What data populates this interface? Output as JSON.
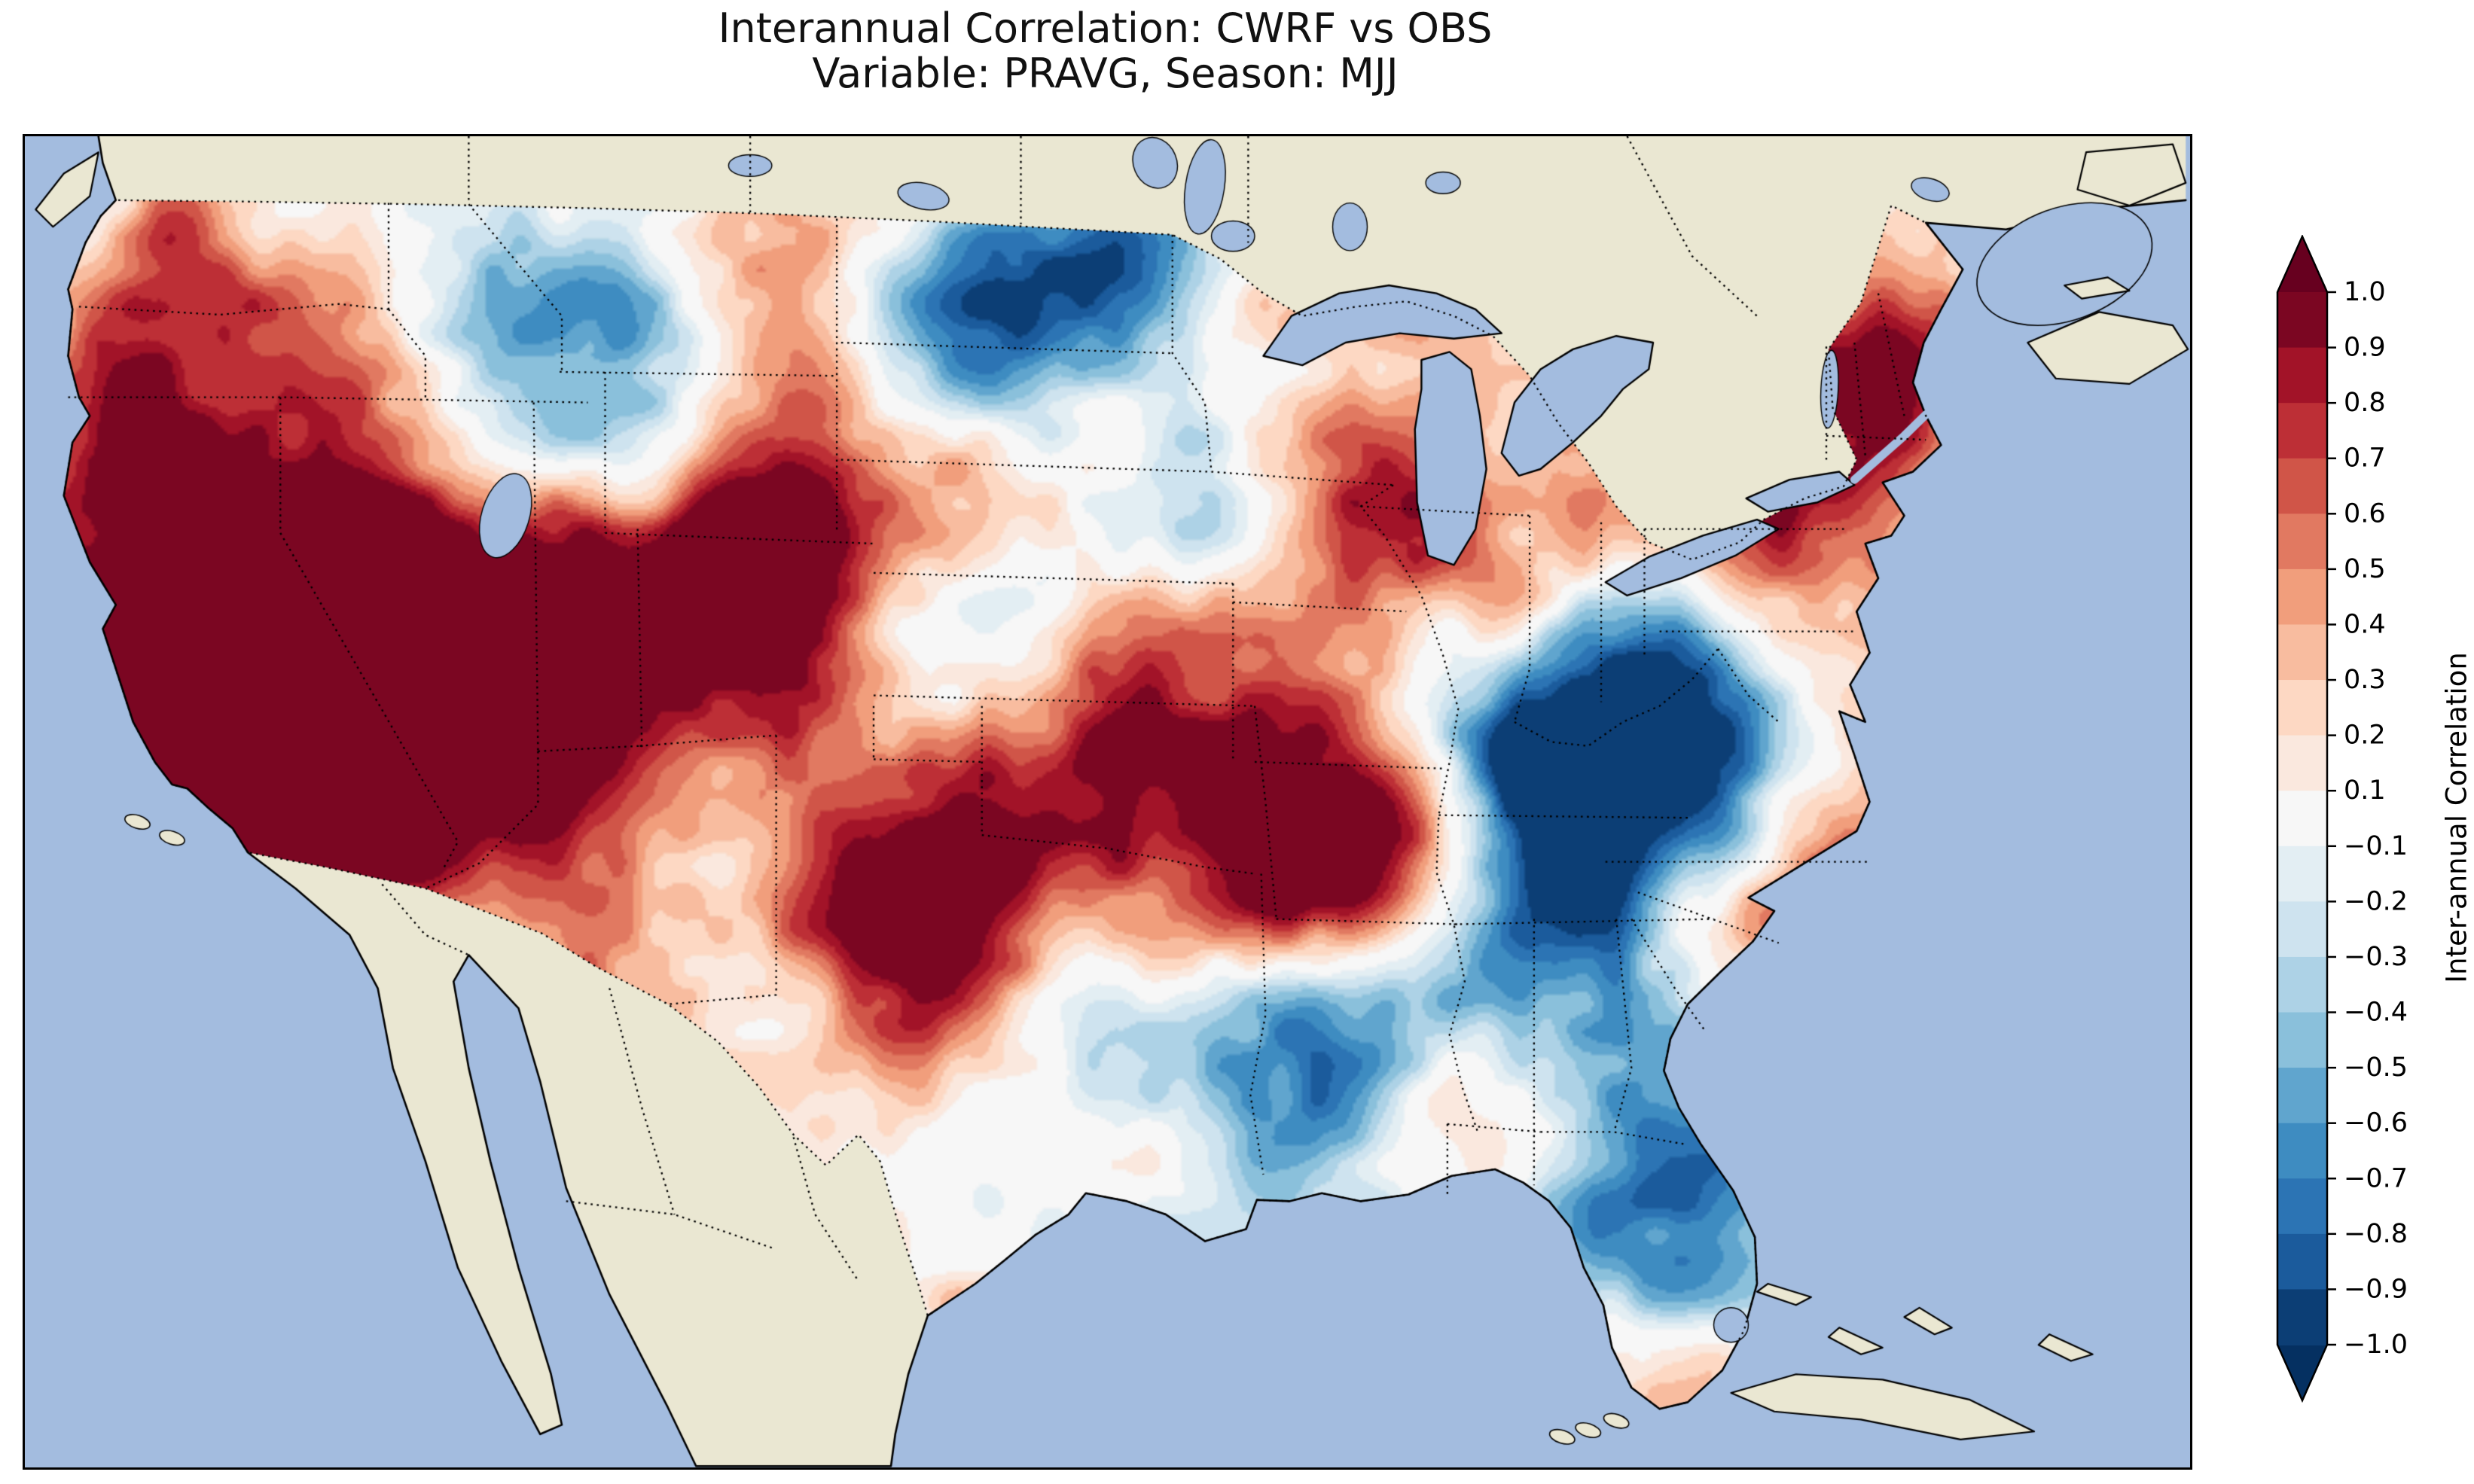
{
  "title": {
    "line1": "Interannual Correlation: CWRF vs OBS",
    "line2": "Variable: PRAVG, Season: MJJ"
  },
  "colorbar": {
    "label": "Inter-annual Correlation",
    "tick_labels": [
      "1.0",
      "0.9",
      "0.8",
      "0.7",
      "0.6",
      "0.5",
      "0.4",
      "0.3",
      "0.2",
      "0.1",
      "−0.1",
      "−0.2",
      "−0.3",
      "−0.4",
      "−0.5",
      "−0.6",
      "−0.7",
      "−0.8",
      "−0.9",
      "−1.0"
    ],
    "boundaries": [
      1.0,
      0.9,
      0.8,
      0.7,
      0.6,
      0.5,
      0.4,
      0.3,
      0.2,
      0.1,
      -0.1,
      -0.2,
      -0.3,
      -0.4,
      -0.5,
      -0.6,
      -0.7,
      -0.8,
      -0.9,
      -1.0
    ],
    "extend": "both",
    "colormap_anchors": [
      "#053061",
      "#2166ac",
      "#4393c5",
      "#92c5de",
      "#d1e5f0",
      "#f7f7f7",
      "#fddbc7",
      "#f4a582",
      "#d6604d",
      "#b2182b",
      "#67001f"
    ]
  },
  "map": {
    "ocean_color": "#a3bcdf",
    "land_color": "#eae7d2",
    "coastline_color": "#000000",
    "state_border_style": "dotted"
  },
  "chart_data": {
    "type": "heatmap",
    "title": "Interannual Correlation: CWRF vs OBS",
    "subtitle": "Variable: PRAVG, Season: MJJ",
    "variable": "PRAVG",
    "season": "MJJ",
    "model": "CWRF",
    "reference": "OBS",
    "region": "Contiguous United States (field masked outside the US; Canada and Mexico shown as plain land)",
    "value_range": [
      -1.0,
      1.0
    ],
    "colormap": "RdBu_r (red = positive correlation, blue = negative)",
    "colorbar_label": "Inter-annual Correlation",
    "colorbar_boundaries": [
      1.0,
      0.9,
      0.8,
      0.7,
      0.6,
      0.5,
      0.4,
      0.3,
      0.2,
      0.1,
      -0.1,
      -0.2,
      -0.3,
      -0.4,
      -0.5,
      -0.6,
      -0.7,
      -0.8,
      -0.9,
      -1.0
    ],
    "regions_summary": [
      "Strong positive correlation (0.7 to 0.95) over California, Nevada, the Great Basin and southern Utah",
      "Dark-red positive maxima over the central Plains (SD/NE), Iowa/Missouri, and the OK/TX panhandle region",
      "Strong negative patches over the ND/MN border, Nebraska/Iowa, the Ohio Valley and central Appalachians (WV/VA)",
      "Negative correlation over the lower Mississippi (LA/MS), Georgia and the central Florida peninsula (to -0.8)",
      "Positive band over upstate New York and northern New England; red along the coastal Carolinas",
      "Near-zero (white) values over much of west Texas, New Mexico and the Mid-Atlantic"
    ],
    "approx_field": [
      {
        "x": 0.06,
        "y": 0.13,
        "r": 0.035,
        "c": 0.6
      },
      {
        "x": 0.115,
        "y": 0.055,
        "r": 0.03,
        "c": -0.35
      },
      {
        "x": 0.095,
        "y": 0.1,
        "r": 0.04,
        "c": 0.35
      },
      {
        "x": 0.145,
        "y": 0.25,
        "r": 0.045,
        "c": 0.55
      },
      {
        "x": 0.045,
        "y": 0.22,
        "r": 0.03,
        "c": 0.55
      },
      {
        "x": 0.065,
        "y": 0.33,
        "r": 0.05,
        "c": 0.85
      },
      {
        "x": 0.135,
        "y": 0.42,
        "r": 0.07,
        "c": 0.95
      },
      {
        "x": 0.1,
        "y": 0.51,
        "r": 0.04,
        "c": 0.85
      },
      {
        "x": 0.205,
        "y": 0.38,
        "r": 0.06,
        "c": 0.8
      },
      {
        "x": 0.24,
        "y": 0.47,
        "r": 0.045,
        "c": 0.55
      },
      {
        "x": 0.275,
        "y": 0.34,
        "r": 0.045,
        "c": 0.45
      },
      {
        "x": 0.21,
        "y": 0.17,
        "r": 0.04,
        "c": -0.45
      },
      {
        "x": 0.255,
        "y": 0.255,
        "r": 0.045,
        "c": -0.5
      },
      {
        "x": 0.27,
        "y": 0.115,
        "r": 0.035,
        "c": -0.3
      },
      {
        "x": 0.35,
        "y": 0.1,
        "r": 0.04,
        "c": 0.45
      },
      {
        "x": 0.315,
        "y": 0.22,
        "r": 0.045,
        "c": -0.4
      },
      {
        "x": 0.455,
        "y": 0.135,
        "r": 0.045,
        "c": -0.8
      },
      {
        "x": 0.52,
        "y": 0.09,
        "r": 0.035,
        "c": -0.4
      },
      {
        "x": 0.59,
        "y": 0.16,
        "r": 0.045,
        "c": 0.55
      },
      {
        "x": 0.55,
        "y": 0.27,
        "r": 0.04,
        "c": -0.5
      },
      {
        "x": 0.49,
        "y": 0.2,
        "r": 0.035,
        "c": 0.45
      },
      {
        "x": 0.37,
        "y": 0.315,
        "r": 0.05,
        "c": 0.9
      },
      {
        "x": 0.33,
        "y": 0.3,
        "r": 0.035,
        "c": 0.5
      },
      {
        "x": 0.445,
        "y": 0.375,
        "r": 0.05,
        "c": -0.6
      },
      {
        "x": 0.52,
        "y": 0.38,
        "r": 0.038,
        "c": 0.7
      },
      {
        "x": 0.465,
        "y": 0.46,
        "r": 0.04,
        "c": 0.55
      },
      {
        "x": 0.35,
        "y": 0.45,
        "r": 0.04,
        "c": 0.5
      },
      {
        "x": 0.41,
        "y": 0.42,
        "r": 0.035,
        "c": -0.25
      },
      {
        "x": 0.44,
        "y": 0.575,
        "r": 0.05,
        "c": 0.9
      },
      {
        "x": 0.365,
        "y": 0.55,
        "r": 0.04,
        "c": 0.45
      },
      {
        "x": 0.3,
        "y": 0.52,
        "r": 0.04,
        "c": -0.3
      },
      {
        "x": 0.285,
        "y": 0.6,
        "r": 0.035,
        "c": 0.35
      },
      {
        "x": 0.335,
        "y": 0.66,
        "r": 0.045,
        "c": -0.2
      },
      {
        "x": 0.41,
        "y": 0.675,
        "r": 0.038,
        "c": 0.55
      },
      {
        "x": 0.475,
        "y": 0.635,
        "r": 0.035,
        "c": -0.45
      },
      {
        "x": 0.462,
        "y": 0.73,
        "r": 0.045,
        "c": -0.55
      },
      {
        "x": 0.5,
        "y": 0.77,
        "r": 0.03,
        "c": 0.5
      },
      {
        "x": 0.525,
        "y": 0.6,
        "r": 0.035,
        "c": 0.45
      },
      {
        "x": 0.565,
        "y": 0.52,
        "r": 0.04,
        "c": 0.6
      },
      {
        "x": 0.6,
        "y": 0.5,
        "r": 0.038,
        "c": 0.75
      },
      {
        "x": 0.635,
        "y": 0.42,
        "r": 0.038,
        "c": -0.35
      },
      {
        "x": 0.665,
        "y": 0.385,
        "r": 0.033,
        "c": 0.4
      },
      {
        "x": 0.625,
        "y": 0.3,
        "r": 0.04,
        "c": 0.6
      },
      {
        "x": 0.705,
        "y": 0.3,
        "r": 0.04,
        "c": 0.5
      },
      {
        "x": 0.685,
        "y": 0.43,
        "r": 0.04,
        "c": -0.5
      },
      {
        "x": 0.73,
        "y": 0.455,
        "r": 0.05,
        "c": -0.75
      },
      {
        "x": 0.755,
        "y": 0.4,
        "r": 0.035,
        "c": -0.4
      },
      {
        "x": 0.8,
        "y": 0.26,
        "r": 0.042,
        "c": 0.75
      },
      {
        "x": 0.845,
        "y": 0.195,
        "r": 0.033,
        "c": 0.5
      },
      {
        "x": 0.872,
        "y": 0.14,
        "r": 0.03,
        "c": 0.45
      },
      {
        "x": 0.645,
        "y": 0.575,
        "r": 0.038,
        "c": 0.6
      },
      {
        "x": 0.605,
        "y": 0.685,
        "r": 0.048,
        "c": -0.75
      },
      {
        "x": 0.655,
        "y": 0.625,
        "r": 0.03,
        "c": -0.45
      },
      {
        "x": 0.66,
        "y": 0.735,
        "r": 0.033,
        "c": 0.5
      },
      {
        "x": 0.725,
        "y": 0.63,
        "r": 0.04,
        "c": -0.5
      },
      {
        "x": 0.705,
        "y": 0.555,
        "r": 0.035,
        "c": -0.45
      },
      {
        "x": 0.82,
        "y": 0.545,
        "r": 0.035,
        "c": 0.6
      },
      {
        "x": 0.775,
        "y": 0.615,
        "r": 0.028,
        "c": 0.35
      },
      {
        "x": 0.755,
        "y": 0.8,
        "r": 0.045,
        "c": -0.8
      },
      {
        "x": 0.765,
        "y": 0.91,
        "r": 0.022,
        "c": 0.5
      },
      {
        "x": 0.78,
        "y": 0.47,
        "r": 0.03,
        "c": -0.45
      },
      {
        "x": 0.66,
        "y": 0.5,
        "r": 0.03,
        "c": 0.45
      },
      {
        "x": 0.71,
        "y": 0.49,
        "r": 0.035,
        "c": -0.5
      }
    ],
    "render_noise": {
      "octaves": [
        {
          "cell": 62,
          "amp": 0.26
        },
        {
          "cell": 26,
          "amp": 0.2
        },
        {
          "cell": 11,
          "amp": 0.12
        }
      ],
      "bias": 0.06,
      "seed": 7
    }
  }
}
